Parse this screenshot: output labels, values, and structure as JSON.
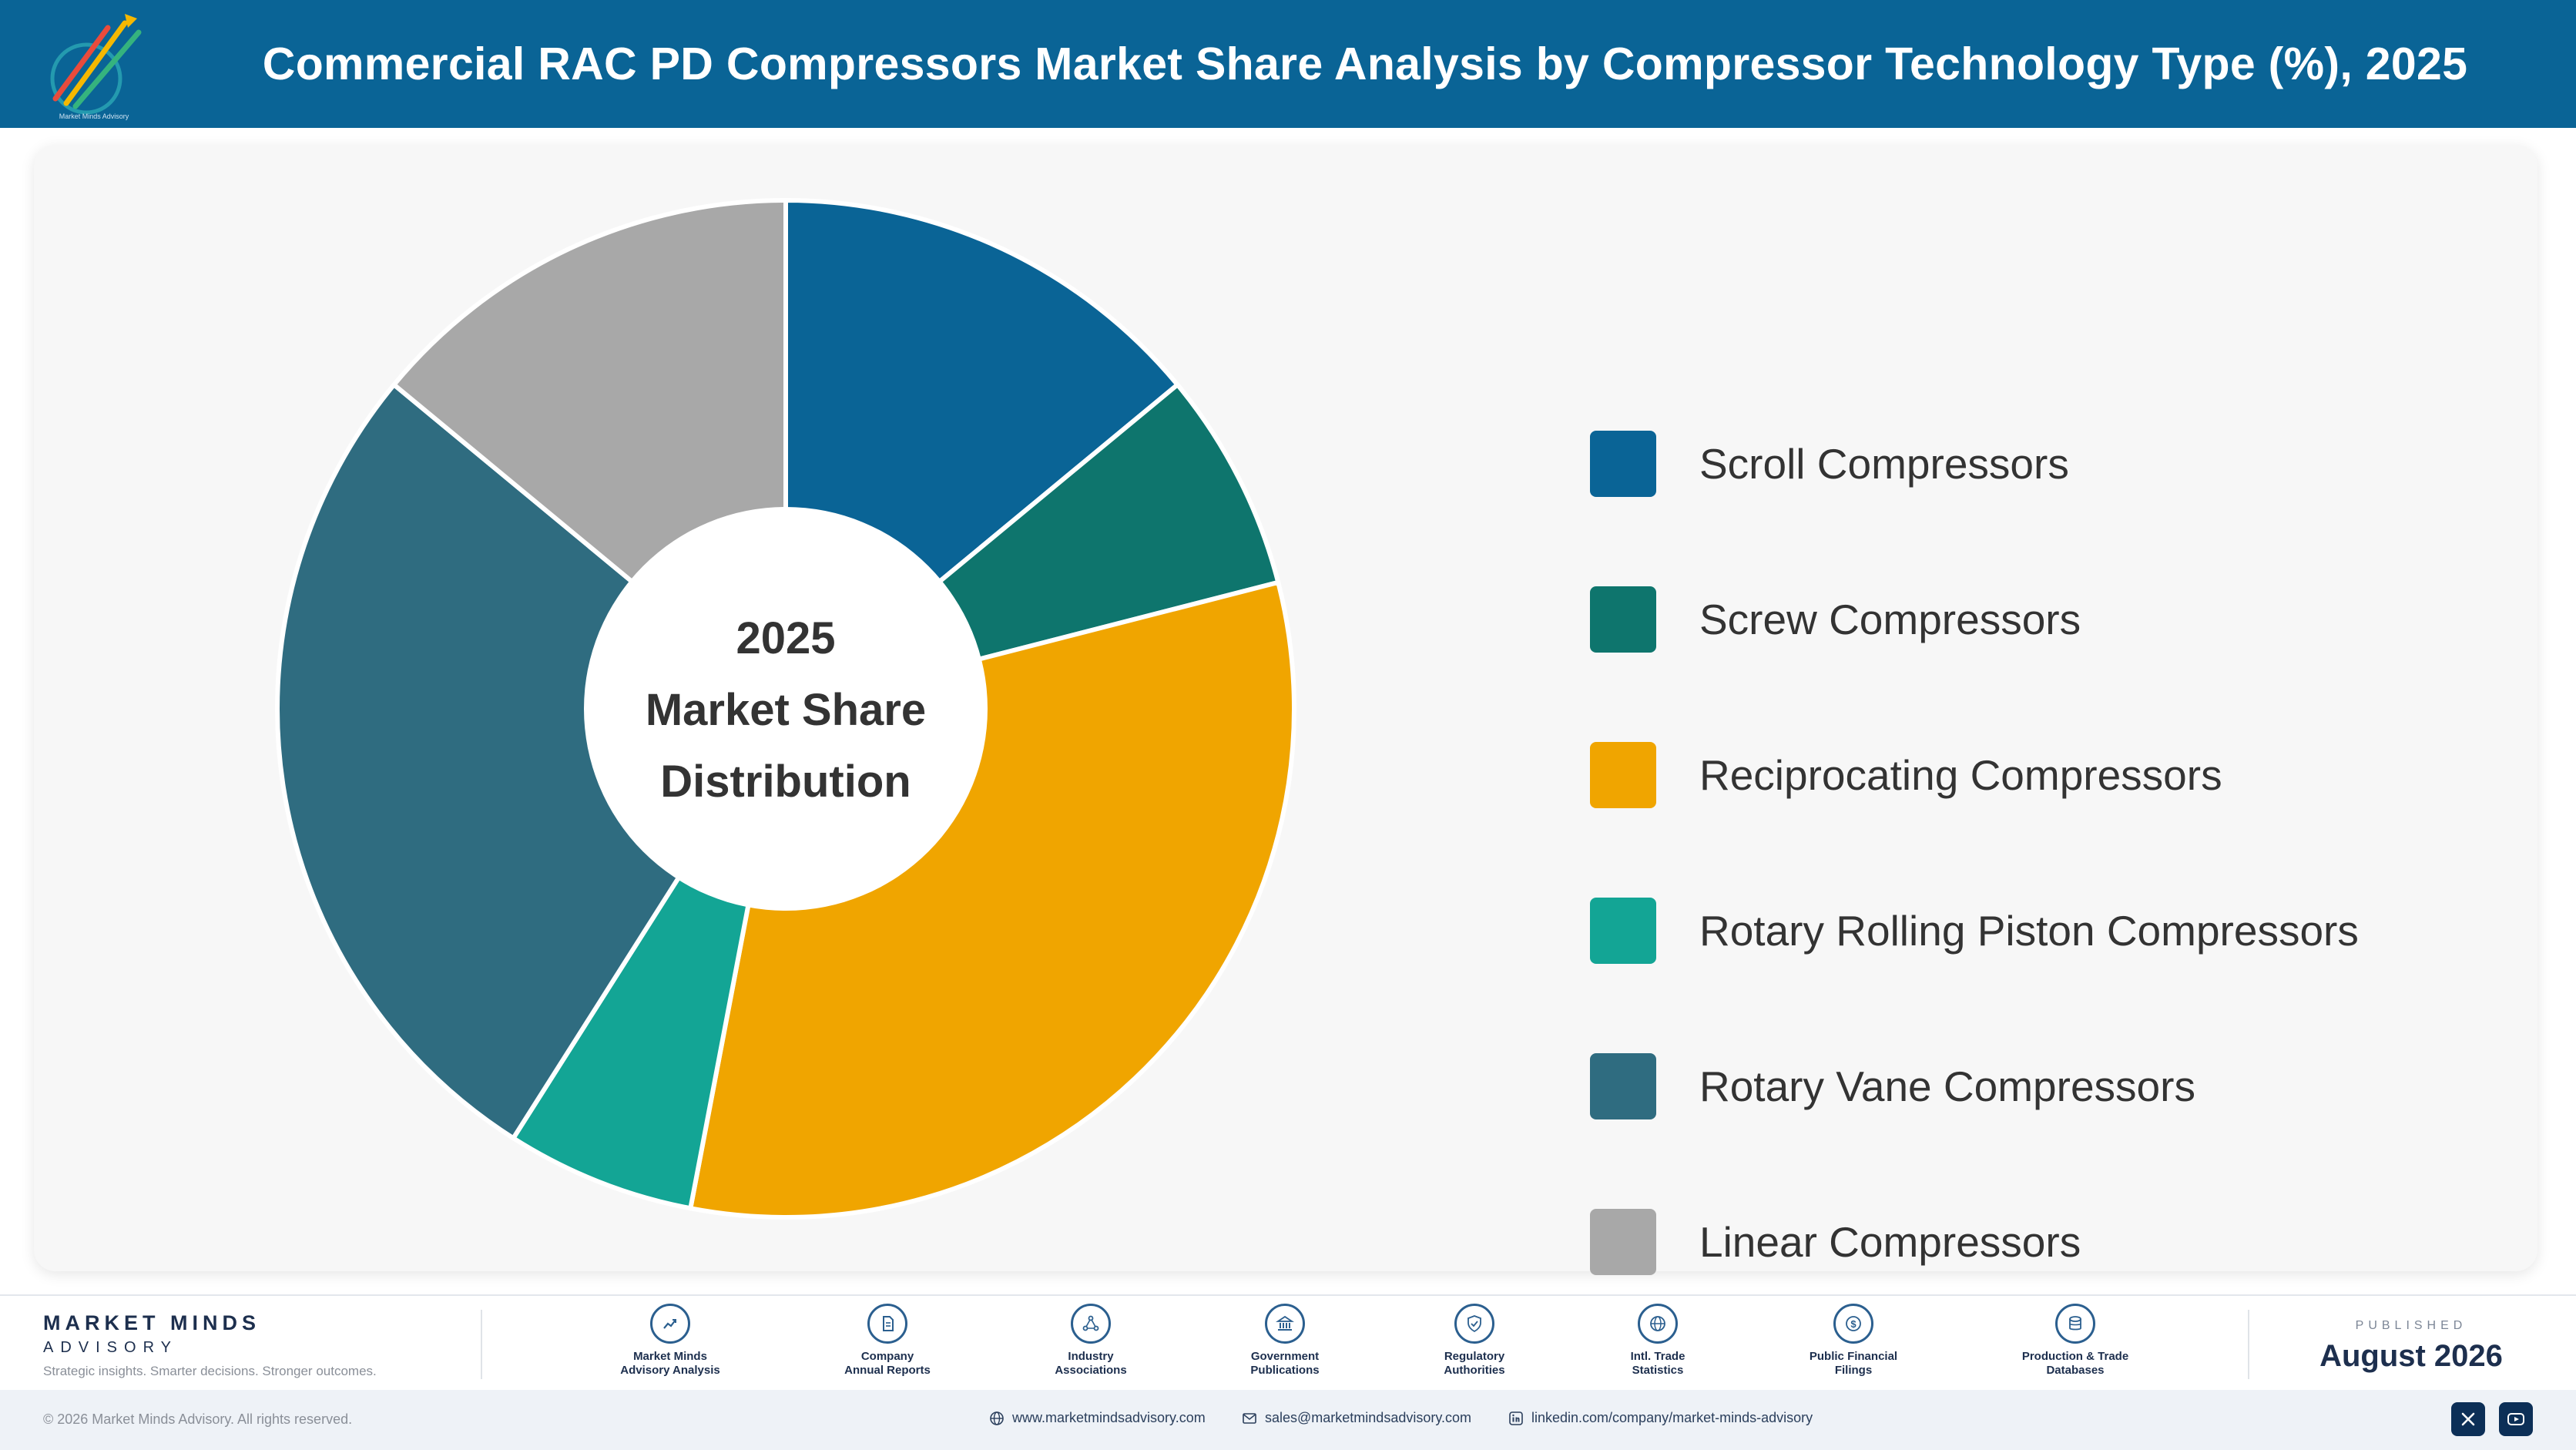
{
  "header": {
    "title": "Commercial RAC PD Compressors Market Share Analysis by Compressor Technology Type (%), 2025",
    "logo_text": "Market Minds Advisory"
  },
  "chart_data": {
    "type": "pie",
    "title": "Commercial RAC PD Compressors Market Share Analysis by Compressor Technology Type (%), 2025",
    "center_label": [
      "2025",
      "Market Share",
      "Distribution"
    ],
    "legend_position": "right",
    "categories": [
      "Scroll Compressors",
      "Screw Compressors",
      "Reciprocating Compressors",
      "Rotary Rolling Piston Compressors",
      "Rotary Vane Compressors",
      "Linear Compressors"
    ],
    "values": [
      14,
      7,
      32,
      6,
      27,
      14
    ],
    "colors": [
      "#0a6496",
      "#0e756d",
      "#f0a500",
      "#13a595",
      "#2f6c80",
      "#a8a8a8"
    ]
  },
  "footer": {
    "brand_name": "MARKET MINDS",
    "brand_sub": "ADVISORY",
    "brand_tagline": "Strategic insights. Smarter decisions. Stronger outcomes.",
    "sources": [
      {
        "label": "Market Minds\nAdvisory Analysis",
        "icon": "chart-line-icon"
      },
      {
        "label": "Company\nAnnual Reports",
        "icon": "document-icon"
      },
      {
        "label": "Industry\nAssociations",
        "icon": "network-icon"
      },
      {
        "label": "Government\nPublications",
        "icon": "building-icon"
      },
      {
        "label": "Regulatory\nAuthorities",
        "icon": "shield-check-icon"
      },
      {
        "label": "Intl. Trade\nStatistics",
        "icon": "globe-icon"
      },
      {
        "label": "Public Financial\nFilings",
        "icon": "dollar-coin-icon"
      },
      {
        "label": "Production & Trade\nDatabases",
        "icon": "database-icon"
      }
    ],
    "published_label": "PUBLISHED",
    "published_date": "August 2026",
    "copyright": "© 2026 Market Minds Advisory. All rights reserved.",
    "website": "www.marketmindsadvisory.com",
    "email": "sales@marketmindsadvisory.com",
    "linkedin": "linkedin.com/company/market-minds-advisory",
    "social_icons": [
      "x-icon",
      "youtube-icon"
    ]
  }
}
